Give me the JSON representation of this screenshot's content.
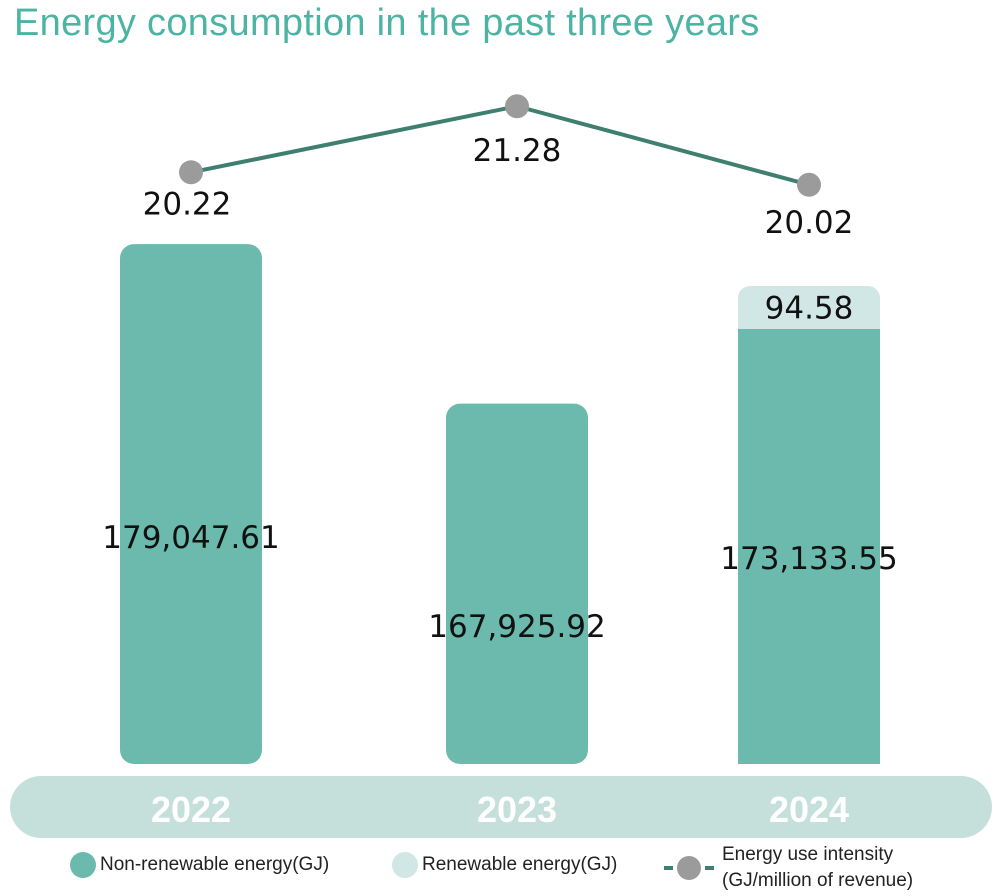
{
  "colors": {
    "title": "#4db3a2",
    "non_renewable": "#6bbaad",
    "renewable": "#d1e7e6",
    "line": "#3e7f70",
    "marker": "#9b9b9b",
    "axis_band": "#c5e0db",
    "year_text": "#ffffff",
    "label_text": "#111111"
  },
  "chart_data": {
    "type": "bar",
    "title": "Energy consumption in the past three years",
    "categories": [
      "2022",
      "2023",
      "2024"
    ],
    "series": [
      {
        "name": "Non-renewable energy(GJ)",
        "kind": "stacked-bar",
        "values": [
          179047.61,
          167925.92,
          173133.55
        ],
        "labels": [
          "179,047.61",
          "167,925.92",
          "173,133.55"
        ]
      },
      {
        "name": "Renewable energy(GJ)",
        "kind": "stacked-bar",
        "values": [
          0,
          0,
          94.58
        ],
        "labels": [
          "",
          "",
          "94.58"
        ]
      },
      {
        "name": "Energy use intensity (GJ/million of revenue)",
        "kind": "line",
        "values": [
          20.22,
          21.28,
          20.02
        ],
        "labels": [
          "20.22",
          "21.28",
          "20.02"
        ]
      }
    ],
    "xlabel": "",
    "ylabel": "",
    "grid": false,
    "legend": "bottom"
  },
  "legend": {
    "non_renewable": "Non-renewable energy(GJ)",
    "renewable": "Renewable energy(GJ)",
    "intensity_line1": "Energy use intensity",
    "intensity_line2": "(GJ/million of revenue)"
  }
}
